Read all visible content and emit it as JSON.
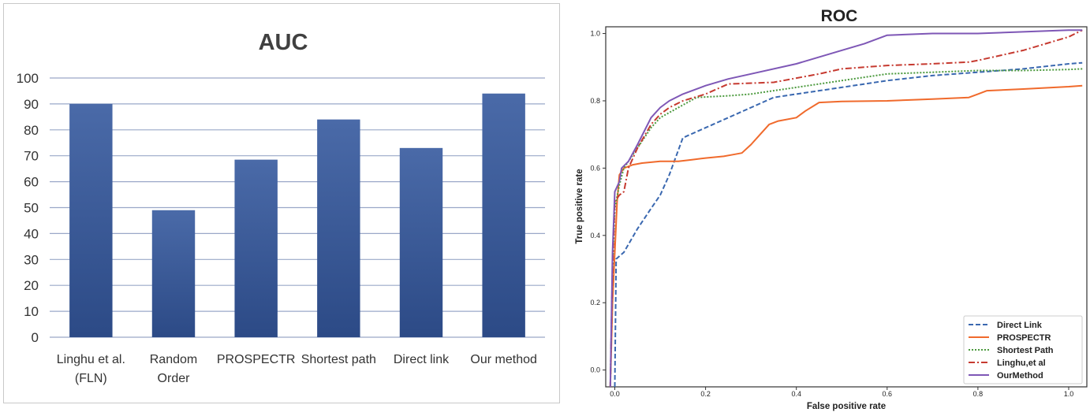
{
  "chart_data": [
    {
      "type": "bar",
      "title": "AUC",
      "categories": [
        [
          "Linghu et al.",
          "(FLN)"
        ],
        [
          "Random",
          "Order"
        ],
        [
          "PROSPECTR"
        ],
        [
          "Shortest path"
        ],
        [
          "Direct link"
        ],
        [
          "Our  method"
        ]
      ],
      "values": [
        90,
        49,
        68.5,
        84,
        73,
        94
      ],
      "ylim": [
        0,
        100
      ],
      "yticks": [
        0,
        10,
        20,
        30,
        40,
        50,
        60,
        70,
        80,
        90,
        100
      ],
      "grid": true,
      "colors": {
        "bar_top": "#4a6aa8",
        "bar_bottom": "#2c4a86",
        "grid": "#9aa8c8"
      }
    },
    {
      "type": "line",
      "title": "ROC",
      "xlabel": "False positive rate",
      "ylabel": "True positive rate",
      "xlim": [
        -0.02,
        1.04
      ],
      "ylim": [
        -0.05,
        1.02
      ],
      "xticks": [
        "0.0",
        "0.2",
        "0.4",
        "0.6",
        "0.8",
        "1.0"
      ],
      "yticks": [
        "0.0",
        "0.2",
        "0.4",
        "0.6",
        "0.8",
        "1.0"
      ],
      "legend_position": "bottom-right",
      "series": [
        {
          "name": "Direct Link",
          "color": "#3a68b0",
          "dash": "dashed",
          "points": [
            [
              0.0,
              -0.05
            ],
            [
              0.003,
              0.33
            ],
            [
              0.02,
              0.35
            ],
            [
              0.05,
              0.42
            ],
            [
              0.08,
              0.48
            ],
            [
              0.1,
              0.52
            ],
            [
              0.12,
              0.58
            ],
            [
              0.15,
              0.69
            ],
            [
              0.2,
              0.72
            ],
            [
              0.25,
              0.75
            ],
            [
              0.3,
              0.78
            ],
            [
              0.35,
              0.81
            ],
            [
              0.4,
              0.82
            ],
            [
              0.5,
              0.84
            ],
            [
              0.6,
              0.86
            ],
            [
              0.7,
              0.875
            ],
            [
              0.8,
              0.885
            ],
            [
              0.9,
              0.895
            ],
            [
              1.0,
              0.91
            ],
            [
              1.03,
              0.913
            ]
          ]
        },
        {
          "name": "PROSPECTR",
          "color": "#f06a2c",
          "dash": "solid",
          "points": [
            [
              -0.01,
              -0.05
            ],
            [
              -0.005,
              0.2
            ],
            [
              0.0,
              0.35
            ],
            [
              0.005,
              0.5
            ],
            [
              0.01,
              0.58
            ],
            [
              0.02,
              0.6
            ],
            [
              0.04,
              0.61
            ],
            [
              0.06,
              0.615
            ],
            [
              0.1,
              0.62
            ],
            [
              0.14,
              0.62
            ],
            [
              0.17,
              0.625
            ],
            [
              0.2,
              0.63
            ],
            [
              0.24,
              0.635
            ],
            [
              0.26,
              0.64
            ],
            [
              0.28,
              0.645
            ],
            [
              0.3,
              0.67
            ],
            [
              0.32,
              0.7
            ],
            [
              0.34,
              0.73
            ],
            [
              0.36,
              0.74
            ],
            [
              0.4,
              0.75
            ],
            [
              0.42,
              0.77
            ],
            [
              0.45,
              0.795
            ],
            [
              0.5,
              0.798
            ],
            [
              0.6,
              0.8
            ],
            [
              0.7,
              0.805
            ],
            [
              0.78,
              0.81
            ],
            [
              0.8,
              0.82
            ],
            [
              0.82,
              0.83
            ],
            [
              0.9,
              0.835
            ],
            [
              1.0,
              0.842
            ],
            [
              1.03,
              0.845
            ]
          ]
        },
        {
          "name": "Shortest Path",
          "color": "#4c9a3e",
          "dash": "dotted",
          "points": [
            [
              -0.01,
              -0.05
            ],
            [
              -0.005,
              0.3
            ],
            [
              0.0,
              0.48
            ],
            [
              0.01,
              0.55
            ],
            [
              0.02,
              0.6
            ],
            [
              0.04,
              0.64
            ],
            [
              0.06,
              0.68
            ],
            [
              0.08,
              0.72
            ],
            [
              0.1,
              0.75
            ],
            [
              0.14,
              0.78
            ],
            [
              0.18,
              0.81
            ],
            [
              0.25,
              0.815
            ],
            [
              0.3,
              0.82
            ],
            [
              0.35,
              0.83
            ],
            [
              0.4,
              0.84
            ],
            [
              0.5,
              0.86
            ],
            [
              0.6,
              0.88
            ],
            [
              0.7,
              0.885
            ],
            [
              0.8,
              0.89
            ],
            [
              0.9,
              0.89
            ],
            [
              1.0,
              0.893
            ],
            [
              1.03,
              0.895
            ]
          ]
        },
        {
          "name": "Linghu,et al",
          "color": "#c63a30",
          "dash": "dashdot",
          "points": [
            [
              -0.01,
              -0.05
            ],
            [
              -0.005,
              0.3
            ],
            [
              0.0,
              0.5
            ],
            [
              0.01,
              0.52
            ],
            [
              0.02,
              0.53
            ],
            [
              0.03,
              0.6
            ],
            [
              0.05,
              0.66
            ],
            [
              0.08,
              0.73
            ],
            [
              0.1,
              0.76
            ],
            [
              0.12,
              0.78
            ],
            [
              0.15,
              0.8
            ],
            [
              0.2,
              0.82
            ],
            [
              0.25,
              0.85
            ],
            [
              0.35,
              0.855
            ],
            [
              0.45,
              0.88
            ],
            [
              0.5,
              0.895
            ],
            [
              0.6,
              0.905
            ],
            [
              0.7,
              0.91
            ],
            [
              0.78,
              0.915
            ],
            [
              0.8,
              0.92
            ],
            [
              0.9,
              0.95
            ],
            [
              1.0,
              0.99
            ],
            [
              1.03,
              1.01
            ]
          ]
        },
        {
          "name": "OurMethod",
          "color": "#7e57b6",
          "dash": "solid",
          "points": [
            [
              -0.01,
              -0.05
            ],
            [
              -0.005,
              0.35
            ],
            [
              0.0,
              0.53
            ],
            [
              0.01,
              0.56
            ],
            [
              0.015,
              0.6
            ],
            [
              0.03,
              0.62
            ],
            [
              0.05,
              0.67
            ],
            [
              0.08,
              0.75
            ],
            [
              0.1,
              0.78
            ],
            [
              0.12,
              0.8
            ],
            [
              0.15,
              0.82
            ],
            [
              0.2,
              0.845
            ],
            [
              0.25,
              0.865
            ],
            [
              0.3,
              0.88
            ],
            [
              0.4,
              0.91
            ],
            [
              0.5,
              0.95
            ],
            [
              0.55,
              0.97
            ],
            [
              0.6,
              0.995
            ],
            [
              0.7,
              1.0
            ],
            [
              0.8,
              1.0
            ],
            [
              0.9,
              1.005
            ],
            [
              1.0,
              1.01
            ],
            [
              1.03,
              1.01
            ]
          ]
        }
      ]
    }
  ]
}
